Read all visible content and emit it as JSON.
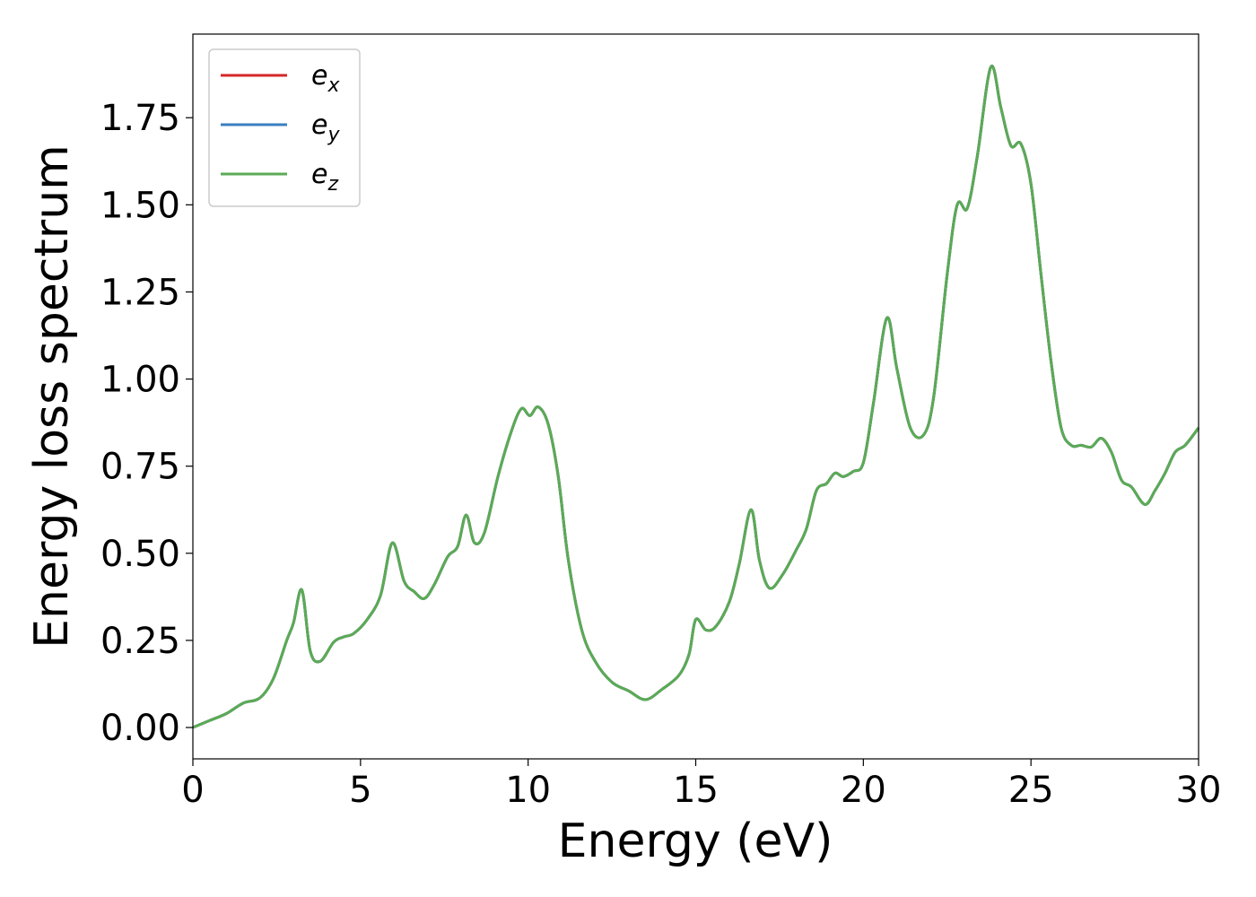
{
  "chart_data": {
    "type": "line",
    "title": "",
    "xlabel": "Energy (eV)",
    "ylabel": "Energy loss spectrum",
    "xlim": [
      0,
      30
    ],
    "ylim": [
      -0.09,
      1.99
    ],
    "xticks": [
      0,
      5,
      10,
      15,
      20,
      25,
      30
    ],
    "xtick_labels": [
      "0",
      "5",
      "10",
      "15",
      "20",
      "25",
      "30"
    ],
    "yticks": [
      0.0,
      0.25,
      0.5,
      0.75,
      1.0,
      1.25,
      1.5,
      1.75
    ],
    "ytick_labels": [
      "0.00",
      "0.25",
      "0.50",
      "0.75",
      "1.00",
      "1.25",
      "1.50",
      "1.75"
    ],
    "grid": false,
    "legend_position": "top-left",
    "x": [
      0,
      0.5,
      1.0,
      1.5,
      2.0,
      2.4,
      2.8,
      3.0,
      3.25,
      3.5,
      3.8,
      4.2,
      4.5,
      4.8,
      5.2,
      5.6,
      5.95,
      6.3,
      6.6,
      6.9,
      7.2,
      7.6,
      7.9,
      8.15,
      8.4,
      8.7,
      9.1,
      9.5,
      9.8,
      10.05,
      10.3,
      10.6,
      10.9,
      11.2,
      11.6,
      12.0,
      12.5,
      13.0,
      13.5,
      14.0,
      14.5,
      14.8,
      15.0,
      15.3,
      15.6,
      16.0,
      16.3,
      16.65,
      16.9,
      17.2,
      17.6,
      18.0,
      18.3,
      18.6,
      18.9,
      19.15,
      19.4,
      19.7,
      20.0,
      20.3,
      20.7,
      21.0,
      21.4,
      21.8,
      22.1,
      22.5,
      22.8,
      23.1,
      23.4,
      23.8,
      24.1,
      24.4,
      24.7,
      25.0,
      25.3,
      25.6,
      25.9,
      26.2,
      26.5,
      26.8,
      27.1,
      27.4,
      27.7,
      28.0,
      28.4,
      28.7,
      29.0,
      29.3,
      29.6,
      30.0
    ],
    "series": [
      {
        "name": "e_x",
        "color": "#d62728",
        "values": [
          0.0,
          0.02,
          0.04,
          0.07,
          0.085,
          0.14,
          0.25,
          0.3,
          0.395,
          0.22,
          0.19,
          0.245,
          0.26,
          0.27,
          0.31,
          0.38,
          0.53,
          0.42,
          0.39,
          0.37,
          0.41,
          0.49,
          0.52,
          0.61,
          0.53,
          0.56,
          0.72,
          0.85,
          0.915,
          0.895,
          0.92,
          0.87,
          0.72,
          0.48,
          0.28,
          0.19,
          0.13,
          0.105,
          0.08,
          0.11,
          0.15,
          0.21,
          0.31,
          0.28,
          0.29,
          0.36,
          0.47,
          0.625,
          0.48,
          0.4,
          0.44,
          0.51,
          0.57,
          0.68,
          0.7,
          0.73,
          0.72,
          0.735,
          0.76,
          0.93,
          1.175,
          1.03,
          0.86,
          0.84,
          0.95,
          1.3,
          1.5,
          1.49,
          1.64,
          1.895,
          1.78,
          1.67,
          1.675,
          1.56,
          1.3,
          1.05,
          0.86,
          0.81,
          0.81,
          0.805,
          0.83,
          0.79,
          0.71,
          0.69,
          0.64,
          0.68,
          0.73,
          0.79,
          0.81,
          0.86
        ]
      },
      {
        "name": "e_y",
        "color": "#3a7fc1",
        "values": [
          0.0,
          0.02,
          0.04,
          0.07,
          0.085,
          0.14,
          0.25,
          0.3,
          0.395,
          0.22,
          0.19,
          0.245,
          0.26,
          0.27,
          0.31,
          0.38,
          0.53,
          0.42,
          0.39,
          0.37,
          0.41,
          0.49,
          0.52,
          0.61,
          0.53,
          0.56,
          0.72,
          0.85,
          0.915,
          0.895,
          0.92,
          0.87,
          0.72,
          0.48,
          0.28,
          0.19,
          0.13,
          0.105,
          0.08,
          0.11,
          0.15,
          0.21,
          0.31,
          0.28,
          0.29,
          0.36,
          0.47,
          0.625,
          0.48,
          0.4,
          0.44,
          0.51,
          0.57,
          0.68,
          0.7,
          0.73,
          0.72,
          0.735,
          0.76,
          0.93,
          1.175,
          1.03,
          0.86,
          0.84,
          0.95,
          1.3,
          1.5,
          1.49,
          1.64,
          1.895,
          1.78,
          1.67,
          1.675,
          1.56,
          1.3,
          1.05,
          0.86,
          0.81,
          0.81,
          0.805,
          0.83,
          0.79,
          0.71,
          0.69,
          0.64,
          0.68,
          0.73,
          0.79,
          0.81,
          0.86
        ]
      },
      {
        "name": "e_z",
        "color": "#5aab55",
        "values": [
          0.0,
          0.02,
          0.04,
          0.07,
          0.085,
          0.14,
          0.25,
          0.3,
          0.395,
          0.22,
          0.19,
          0.245,
          0.26,
          0.27,
          0.31,
          0.38,
          0.53,
          0.42,
          0.39,
          0.37,
          0.41,
          0.49,
          0.52,
          0.61,
          0.53,
          0.56,
          0.72,
          0.85,
          0.915,
          0.895,
          0.92,
          0.87,
          0.72,
          0.48,
          0.28,
          0.19,
          0.13,
          0.105,
          0.08,
          0.11,
          0.15,
          0.21,
          0.31,
          0.28,
          0.29,
          0.36,
          0.47,
          0.625,
          0.48,
          0.4,
          0.44,
          0.51,
          0.57,
          0.68,
          0.7,
          0.73,
          0.72,
          0.735,
          0.76,
          0.93,
          1.175,
          1.03,
          0.86,
          0.84,
          0.95,
          1.3,
          1.5,
          1.49,
          1.64,
          1.895,
          1.78,
          1.67,
          1.675,
          1.56,
          1.3,
          1.05,
          0.86,
          0.81,
          0.81,
          0.805,
          0.83,
          0.79,
          0.71,
          0.69,
          0.64,
          0.68,
          0.73,
          0.79,
          0.81,
          0.86
        ]
      }
    ],
    "legend": [
      {
        "label_base": "e",
        "label_sub": "x",
        "color": "#d62728"
      },
      {
        "label_base": "e",
        "label_sub": "y",
        "color": "#3a7fc1"
      },
      {
        "label_base": "e",
        "label_sub": "z",
        "color": "#5aab55"
      }
    ]
  }
}
